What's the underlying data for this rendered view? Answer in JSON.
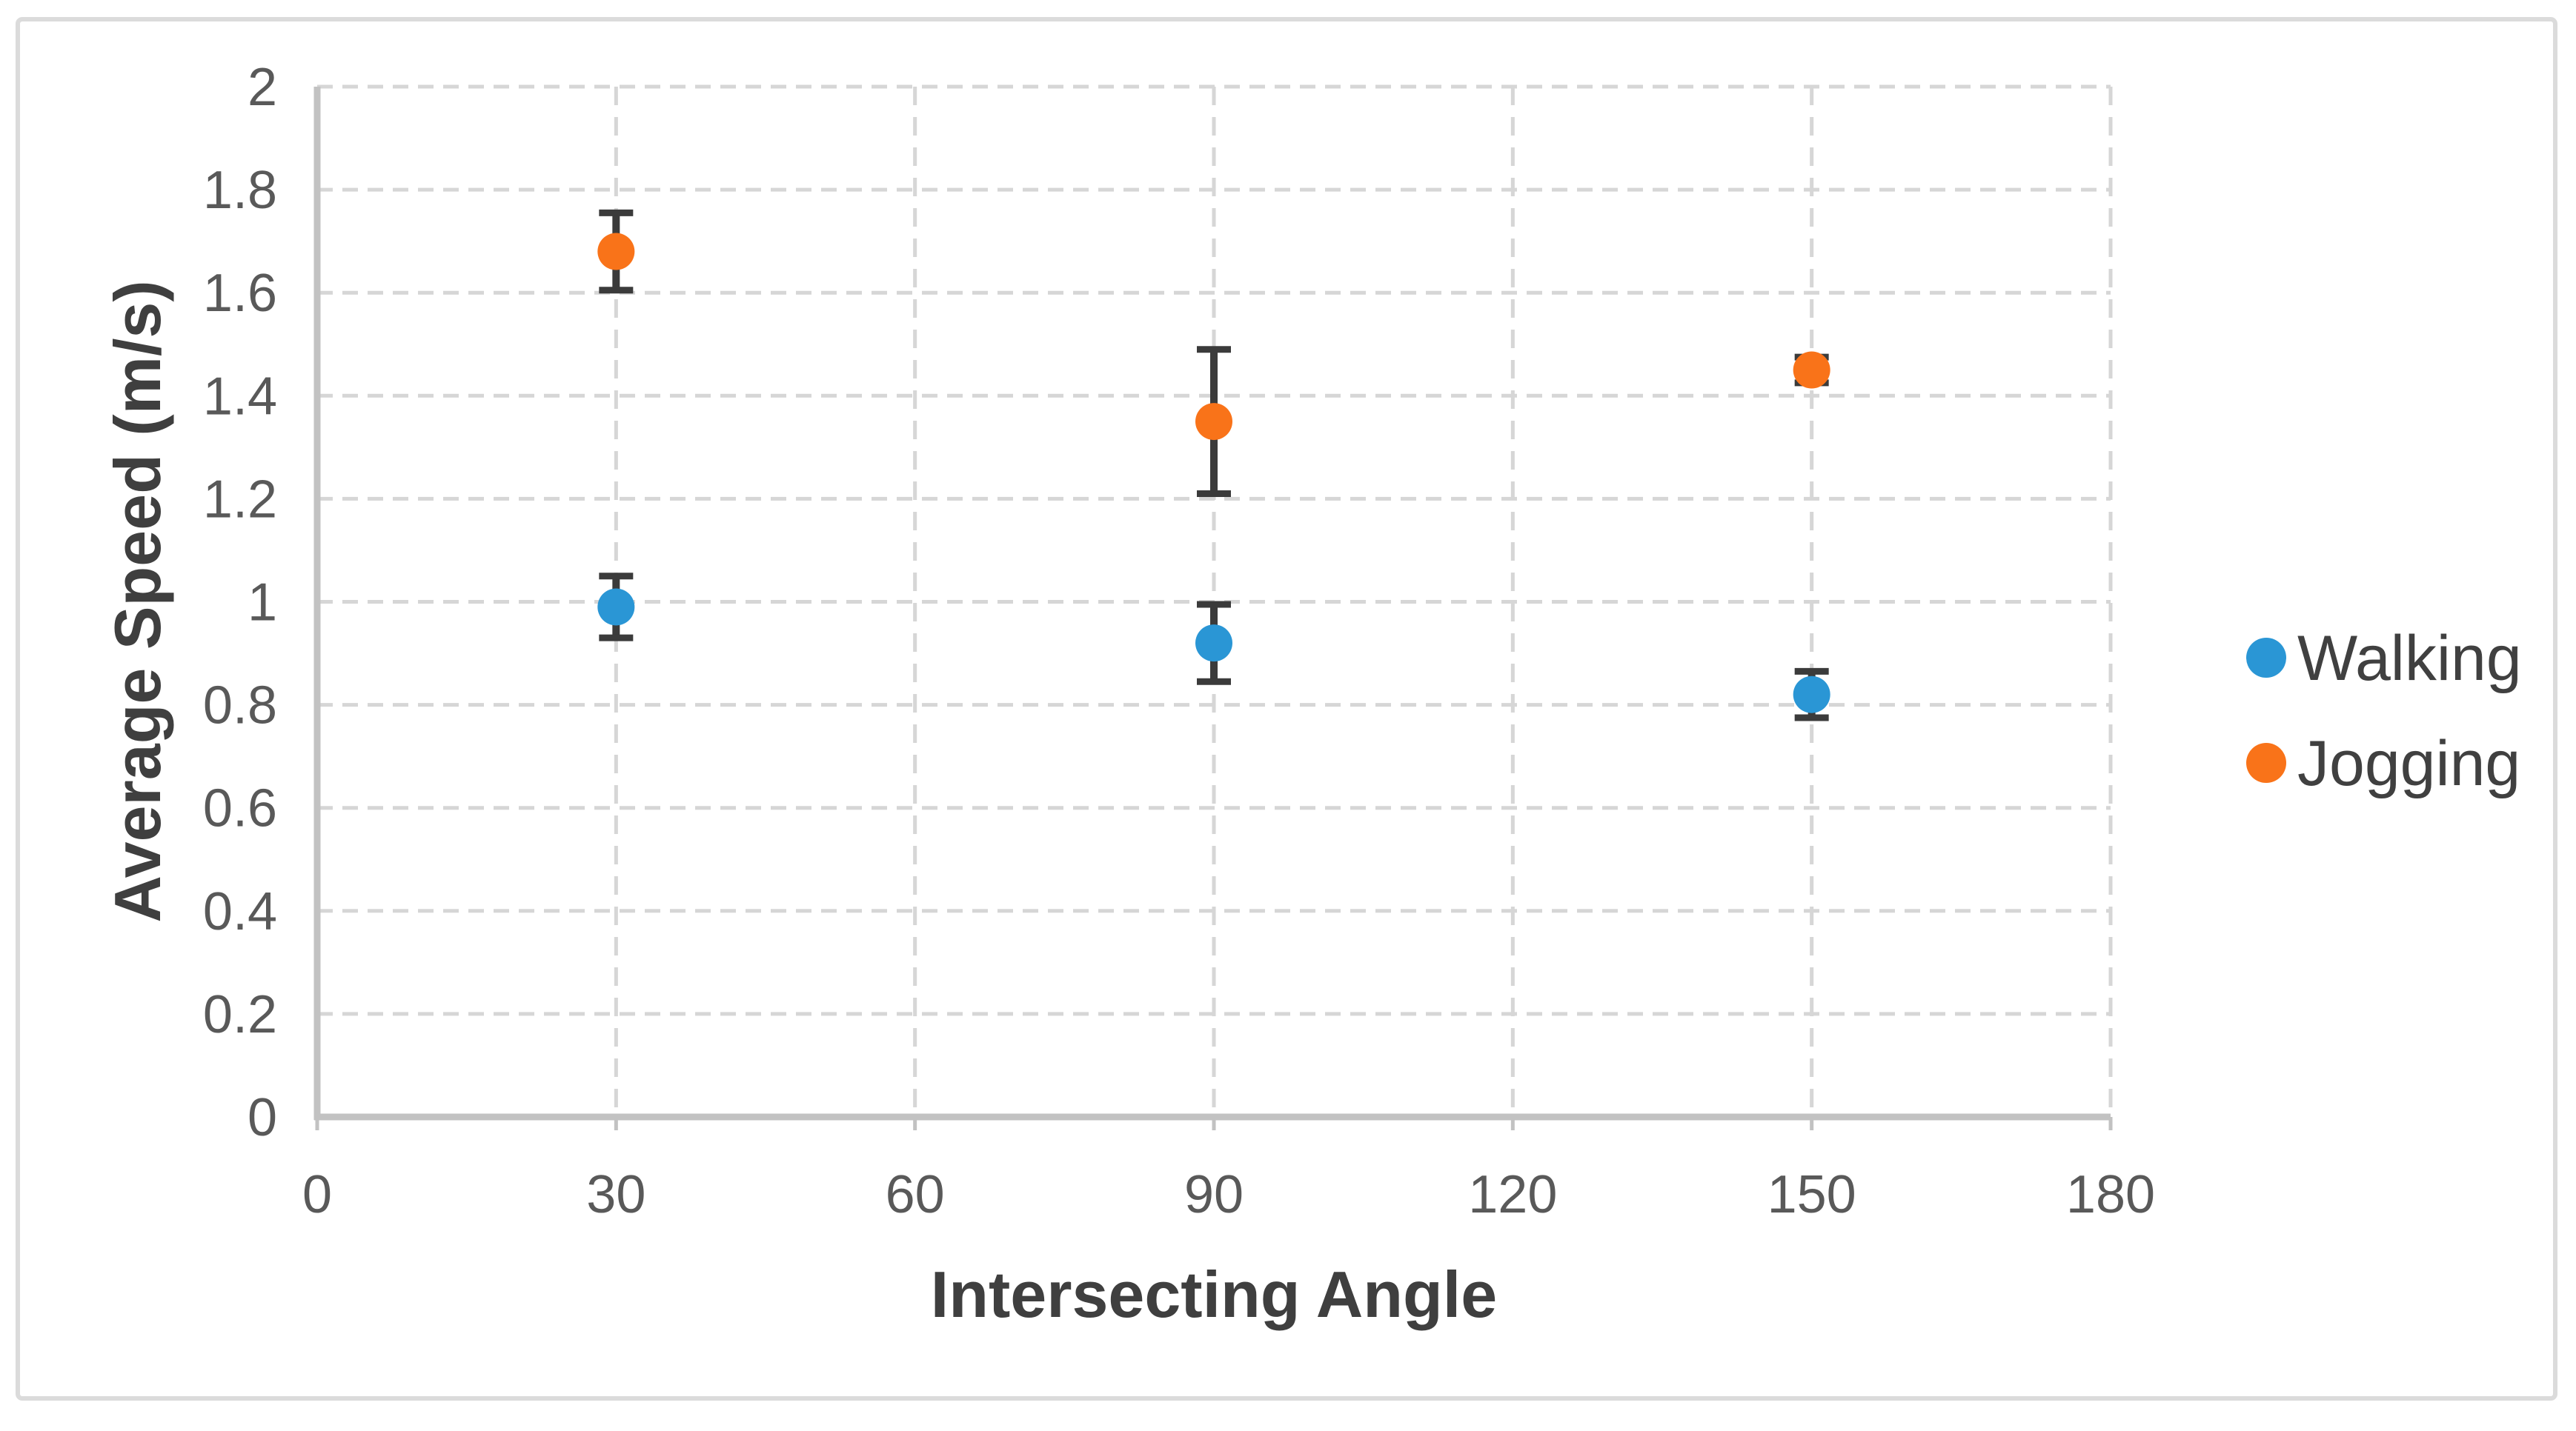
{
  "chart_data": {
    "type": "scatter",
    "title": "",
    "xlabel": "Intersecting Angle",
    "ylabel": "Average Speed (m/s)",
    "xlim": [
      0,
      180
    ],
    "ylim": [
      0,
      2
    ],
    "x_ticks": [
      0,
      30,
      60,
      90,
      120,
      150,
      180
    ],
    "y_ticks": [
      "0",
      "0.2",
      "0.4",
      "0.6",
      "0.8",
      "1",
      "1.2",
      "1.4",
      "1.6",
      "1.8",
      "2"
    ],
    "grid": {
      "horizontal": "dashed",
      "vertical": "dashed",
      "shown": true
    },
    "error_bars": true,
    "legend_position": "right",
    "series": [
      {
        "name": "Walking",
        "color": "#2A96D5",
        "marker": "circle",
        "points": [
          {
            "x": 30,
            "y": 0.99,
            "yerr": 0.06
          },
          {
            "x": 90,
            "y": 0.92,
            "yerr": 0.075
          },
          {
            "x": 150,
            "y": 0.82,
            "yerr": 0.045
          }
        ]
      },
      {
        "name": "Jogging",
        "color": "#F97319",
        "marker": "circle",
        "points": [
          {
            "x": 30,
            "y": 1.68,
            "yerr": 0.075
          },
          {
            "x": 90,
            "y": 1.35,
            "yerr": 0.14
          },
          {
            "x": 150,
            "y": 1.45,
            "yerr": 0.025
          }
        ]
      }
    ]
  },
  "colors": {
    "background": "#FFFFFF",
    "outer_border": "#DBDBDB",
    "gridline": "#D6D6D6",
    "axis_line": "#C2C2C2",
    "error_bar": "#3B3B3B",
    "tick_text": "#595959",
    "axis_title_text": "#3F3F3F",
    "legend_text": "#404040",
    "series_walking": "#2A96D5",
    "series_jogging": "#F97319"
  }
}
